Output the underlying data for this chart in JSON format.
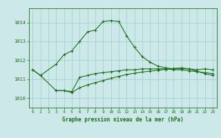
{
  "x": [
    0,
    1,
    2,
    3,
    4,
    5,
    6,
    7,
    8,
    9,
    10,
    11,
    12,
    13,
    14,
    15,
    16,
    17,
    18,
    19,
    20,
    21,
    22,
    23
  ],
  "line1": [
    1011.5,
    1011.2,
    null,
    1011.8,
    1012.3,
    1012.5,
    1013.0,
    1013.5,
    1013.6,
    1014.05,
    1014.1,
    1014.05,
    1013.3,
    1012.7,
    1012.2,
    1011.9,
    1011.7,
    1011.6,
    1011.55,
    1011.55,
    1011.55,
    1011.5,
    1011.55,
    1011.5
  ],
  "line2": [
    1011.5,
    1011.2,
    null,
    1010.4,
    1010.4,
    1010.35,
    1011.1,
    1011.2,
    1011.3,
    1011.35,
    1011.4,
    1011.45,
    1011.5,
    1011.5,
    1011.55,
    1011.55,
    1011.55,
    1011.55,
    1011.5,
    1011.5,
    1011.45,
    1011.4,
    1011.35,
    1011.3
  ],
  "line3": [
    null,
    null,
    null,
    1010.4,
    1010.4,
    1010.3,
    1010.55,
    1010.7,
    1010.82,
    1010.93,
    1011.05,
    1011.15,
    1011.25,
    1011.32,
    1011.38,
    1011.43,
    1011.48,
    1011.52,
    1011.57,
    1011.6,
    1011.55,
    1011.42,
    1011.3,
    1011.2
  ],
  "bg_color": "#cce8e8",
  "grid_color": "#99cccc",
  "line_color": "#1a6e1a",
  "xlabel": "Graphe pression niveau de la mer (hPa)",
  "ylim": [
    1009.5,
    1014.75
  ],
  "yticks": [
    1010,
    1011,
    1012,
    1013,
    1014
  ],
  "xticks": [
    0,
    1,
    2,
    3,
    4,
    5,
    6,
    7,
    8,
    9,
    10,
    11,
    12,
    13,
    14,
    15,
    16,
    17,
    18,
    19,
    20,
    21,
    22,
    23
  ],
  "marker": "+",
  "markersize": 3.5,
  "linewidth": 0.8
}
